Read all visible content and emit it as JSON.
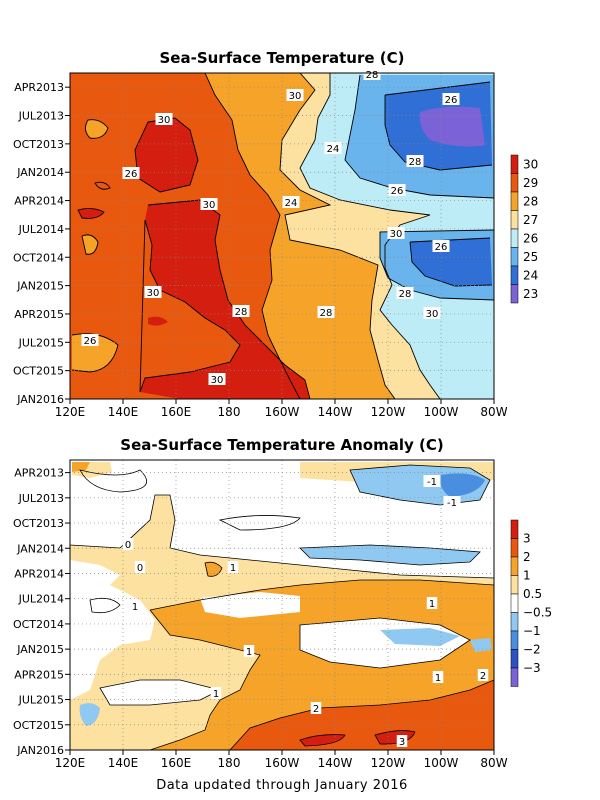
{
  "footer": "Data updated through January 2016",
  "chart_data": [
    {
      "type": "heatmap",
      "title": "Sea-Surface Temperature (C)",
      "x_ticks": [
        "120E",
        "140E",
        "160E",
        "180",
        "160W",
        "140W",
        "120W",
        "100W",
        "80W"
      ],
      "y_ticks": [
        "APR2013",
        "JUL2013",
        "OCT2013",
        "JAN2014",
        "APR2014",
        "JUL2014",
        "OCT2014",
        "JAN2015",
        "APR2015",
        "JUL2015",
        "OCT2015",
        "JAN2016"
      ],
      "colorbar": {
        "labels": [
          "30",
          "29",
          "28",
          "27",
          "26",
          "25",
          "24",
          "23"
        ],
        "colors": [
          "#d41e0f",
          "#e8580e",
          "#f6a32a",
          "#fde1a1",
          "#bdecf7",
          "#69b4ec",
          "#2f6fd6",
          "#7b62d6"
        ]
      },
      "contour_labels": [
        "28",
        "26",
        "30",
        "30",
        "24",
        "26",
        "28",
        "30",
        "26",
        "24",
        "30",
        "26",
        "30",
        "28",
        "28",
        "28",
        "30",
        "26",
        "30"
      ]
    },
    {
      "type": "heatmap",
      "title": "Sea-Surface Temperature Anomaly (C)",
      "x_ticks": [
        "120E",
        "140E",
        "160E",
        "180",
        "160W",
        "140W",
        "120W",
        "100W",
        "80W"
      ],
      "y_ticks": [
        "APR2013",
        "JUL2013",
        "OCT2013",
        "JAN2014",
        "APR2014",
        "JUL2014",
        "OCT2014",
        "JAN2015",
        "APR2015",
        "JUL2015",
        "OCT2015",
        "JAN2016"
      ],
      "colorbar": {
        "labels": [
          "3",
          "2",
          "1",
          "0.5",
          "−0.5",
          "−1",
          "−2",
          "−3"
        ],
        "colors": [
          "#d41e0f",
          "#e8580e",
          "#f6a32a",
          "#fde1a1",
          "#ffffff",
          "#8fc8f0",
          "#4a8ee0",
          "#2d52c4",
          "#7b62d6"
        ]
      },
      "contour_labels": [
        "-1",
        "-1",
        "1",
        "0",
        "0",
        "1",
        "1",
        "1",
        "1",
        "2",
        "2",
        "3",
        "1"
      ]
    }
  ]
}
